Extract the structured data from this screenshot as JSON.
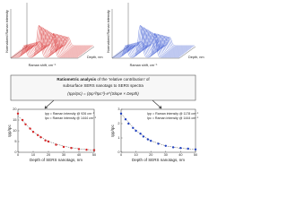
{
  "spectra": [
    {
      "y_label": "Normalized Raman intensity",
      "x_label": "Raman shift, cm⁻¹",
      "z_label": "Depth, nm"
    },
    {
      "y_label": "Normalized Raman intensity",
      "x_label": "Raman shift, cm⁻¹",
      "z_label": "Depth, nm"
    }
  ],
  "analysis": {
    "title_bold": "Ratiometric analysis",
    "title_rest": " of the 'relative contribution' of",
    "line2": "subsurface SERS nanotags to SERS spectra",
    "formula": "(Ipp/Ipc) = (Ipp⁰/Ipc⁰)·e^(Slope × Depth)"
  },
  "chart_data": [
    {
      "type": "scatter",
      "color": "#d62728",
      "x_label": "Depth of SERS nanotags, nm",
      "y_label": "Ipp/Ipc",
      "notes": [
        "Ipp = Raman intensity @ 926 cm⁻¹",
        "Ipc = Raman intensity @ 1444 cm⁻¹"
      ],
      "x": [
        0,
        3,
        5,
        8,
        10,
        13,
        15,
        18,
        20,
        25,
        30,
        35,
        40,
        45,
        50
      ],
      "values": [
        18,
        15,
        13,
        11,
        9.5,
        8,
        7,
        5.5,
        5,
        3.5,
        2.5,
        2,
        1.5,
        1.2,
        1
      ],
      "fit": {
        "x": [
          0,
          10,
          20,
          30,
          40,
          50
        ],
        "values": [
          17,
          9.5,
          5,
          2.8,
          1.6,
          1
        ]
      },
      "xlim": [
        0,
        50
      ],
      "xticks": [
        0,
        10,
        20,
        30,
        40,
        50
      ],
      "ylim": [
        0,
        20
      ],
      "yticks": [
        0,
        5,
        10,
        15,
        20
      ]
    },
    {
      "type": "scatter",
      "color": "#1f3fbf",
      "x_label": "Depth of SERS nanotags, nm",
      "y_label": "Ipp/Ipc",
      "notes": [
        "Ipp = Raman intensity @ 1178 cm⁻¹",
        "Ipc = Raman intensity @ 1444 cm⁻¹"
      ],
      "x": [
        0,
        3,
        5,
        8,
        10,
        13,
        15,
        18,
        20,
        25,
        30,
        35,
        40,
        45,
        50
      ],
      "values": [
        2.7,
        2.3,
        2,
        1.7,
        1.5,
        1.3,
        1.1,
        0.9,
        0.8,
        0.6,
        0.45,
        0.35,
        0.3,
        0.25,
        0.2
      ],
      "fit": {
        "x": [
          0,
          10,
          20,
          30,
          40,
          50
        ],
        "values": [
          2.7,
          1.5,
          0.8,
          0.45,
          0.28,
          0.2
        ]
      },
      "xlim": [
        0,
        50
      ],
      "xticks": [
        0,
        10,
        20,
        30,
        40,
        50
      ],
      "ylim": [
        0,
        3
      ],
      "yticks": [
        0,
        1,
        2,
        3
      ]
    }
  ]
}
